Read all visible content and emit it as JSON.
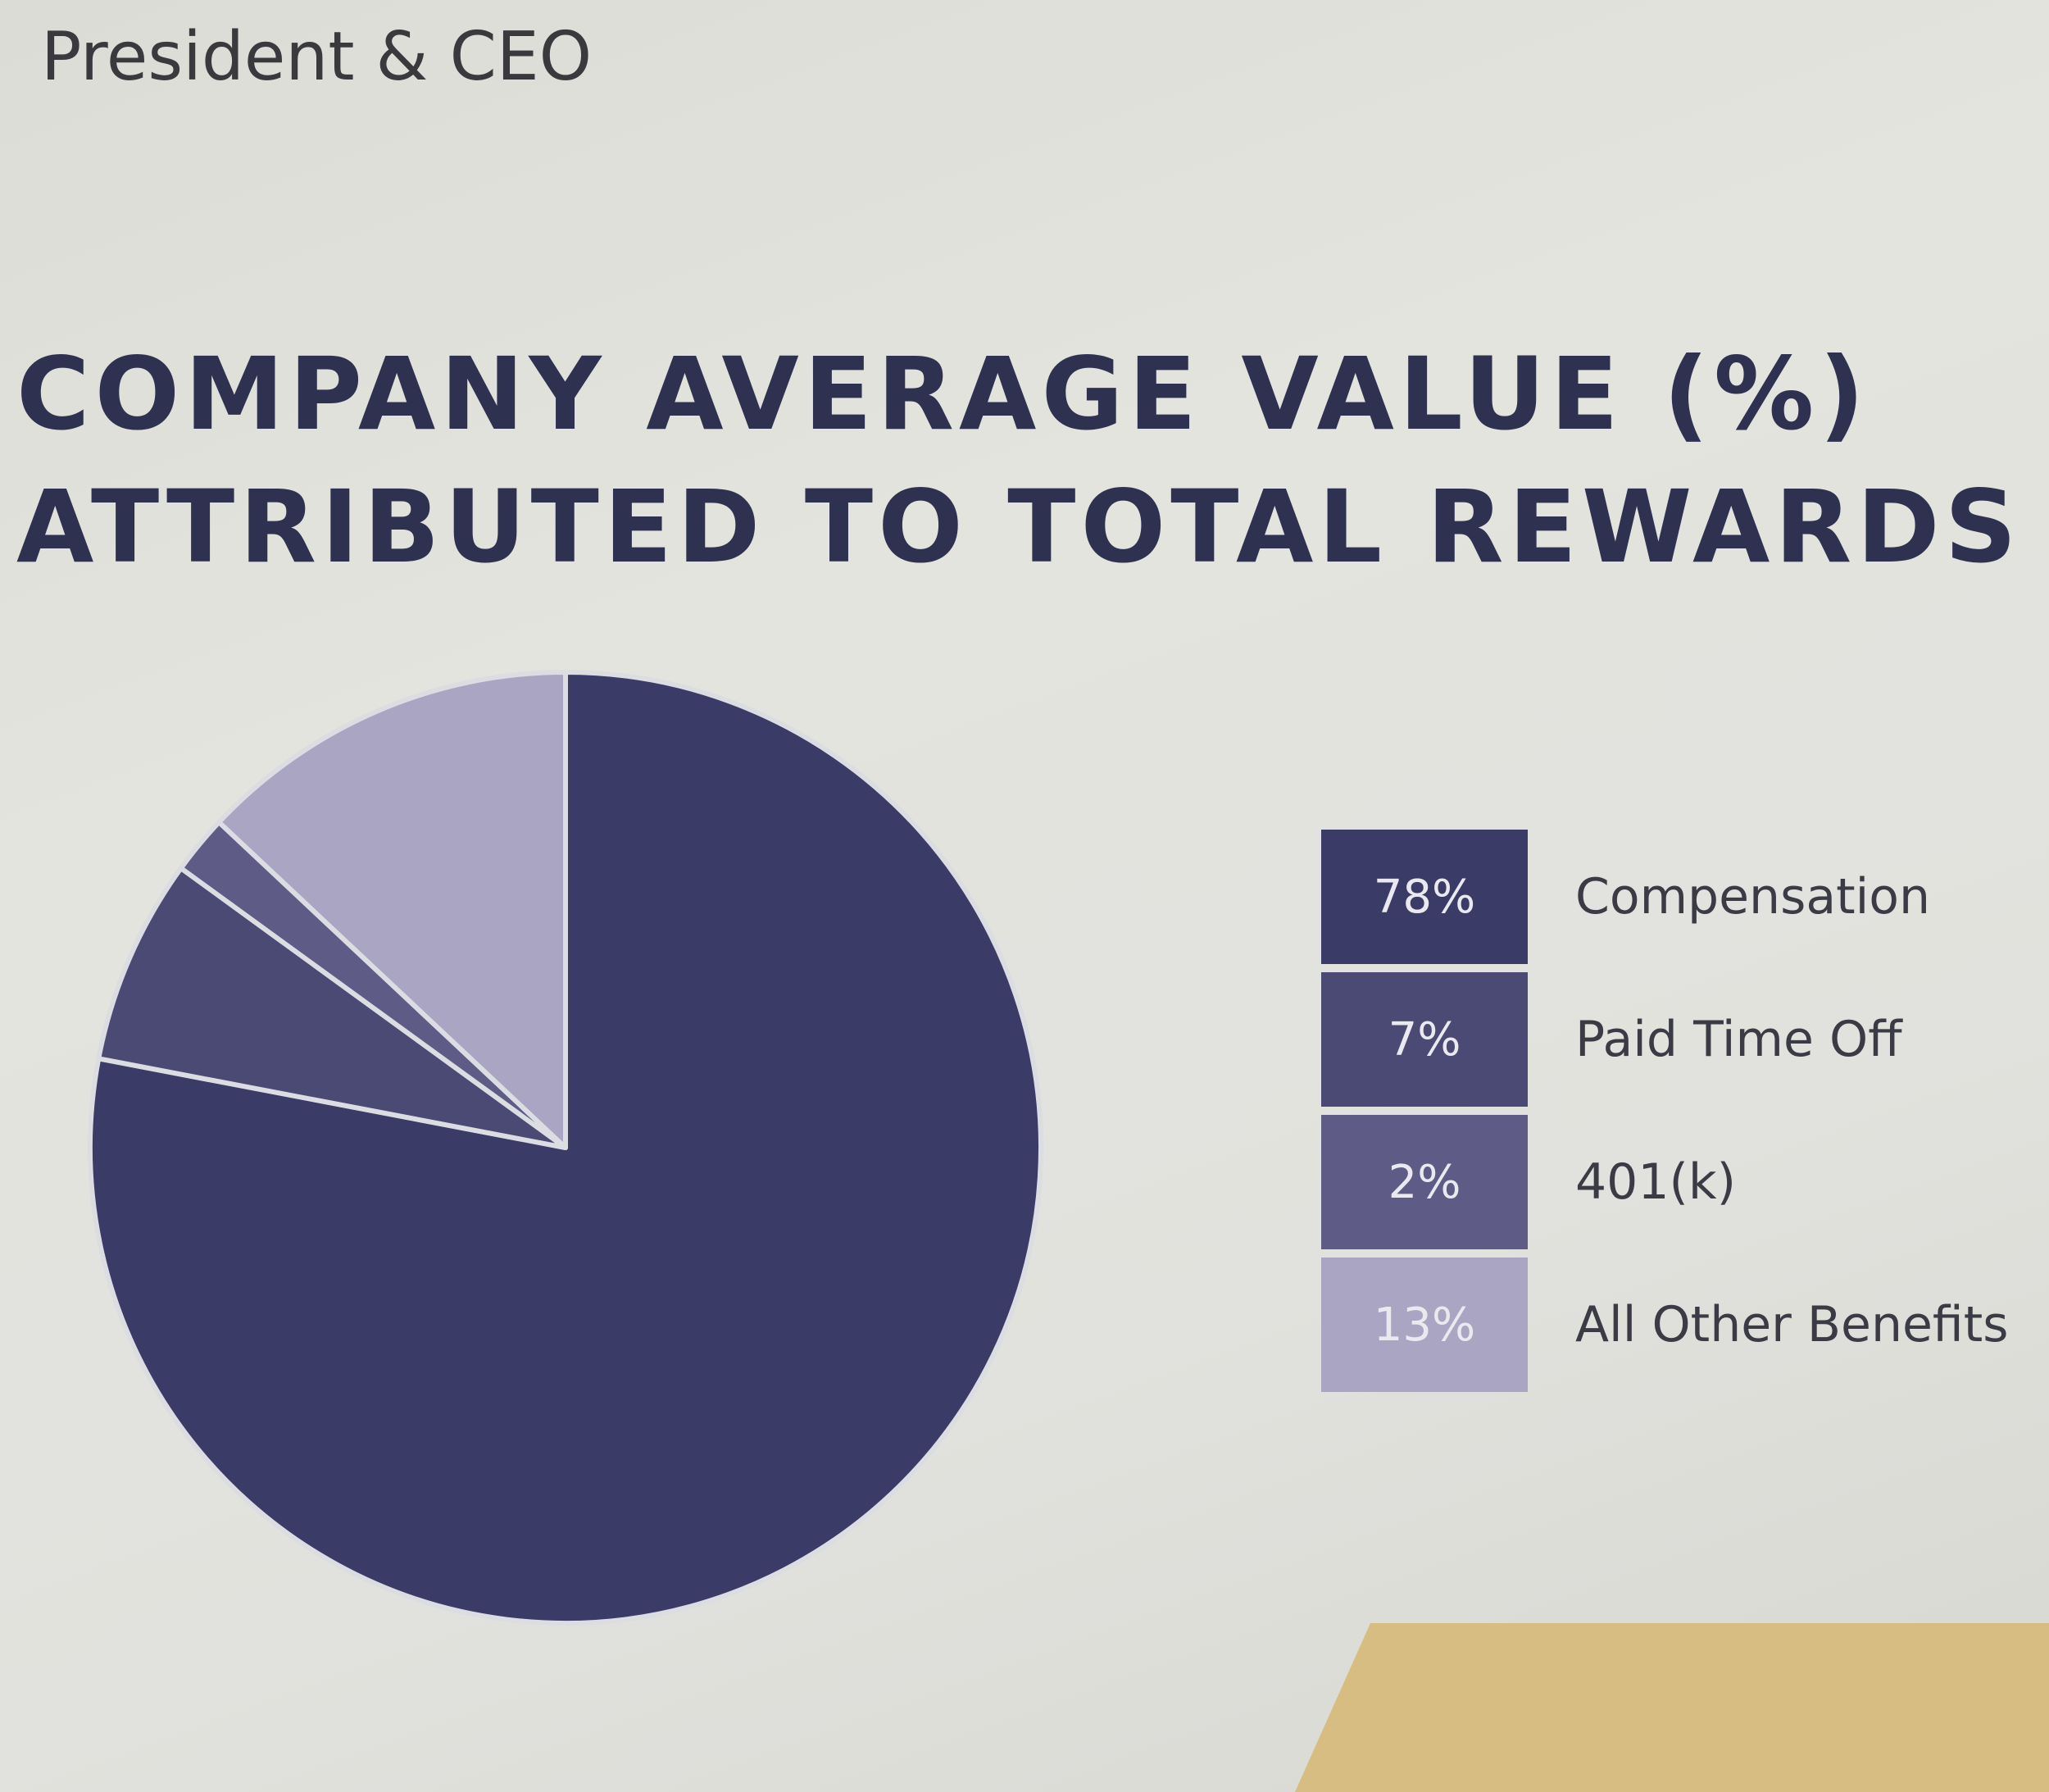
{
  "header": {
    "role": "President & CEO"
  },
  "chart_data": {
    "type": "pie",
    "title_lines": [
      "COMPANY AVERAGE VALUE (%)",
      "ATTRIBUTED TO TOTAL REWARDS"
    ],
    "categories": [
      "Compensation",
      "Paid Time Off",
      "401(k)",
      "All Other Benefits"
    ],
    "values": [
      78,
      7,
      2,
      13
    ],
    "value_labels": [
      "78%",
      "7%",
      "2%",
      "13%"
    ],
    "colors": [
      "#3a3b66",
      "#4a4a75",
      "#5e5c87",
      "#aaa5c2"
    ],
    "legend_position": "right",
    "start_angle_deg": -90,
    "direction": "clockwise"
  }
}
